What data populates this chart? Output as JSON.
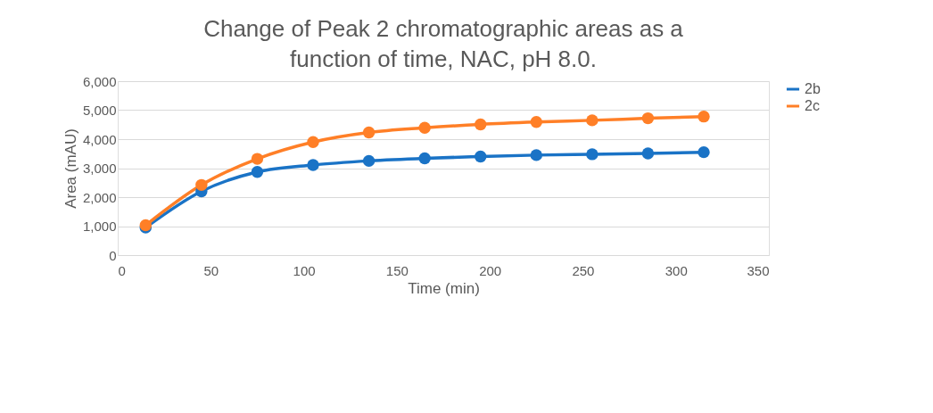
{
  "chart_data": {
    "type": "line",
    "title": "Change of Peak 2 chromatographic areas as a function of time, NAC, pH 8.0.",
    "xlabel": "Time (min)",
    "ylabel": "Area (mAU)",
    "x": [
      15,
      45,
      75,
      105,
      135,
      165,
      195,
      225,
      255,
      285,
      315
    ],
    "series": [
      {
        "name": "2b",
        "color": "#1a73c6",
        "values": [
          950,
          2200,
          2870,
          3110,
          3250,
          3340,
          3400,
          3450,
          3480,
          3510,
          3550
        ]
      },
      {
        "name": "2c",
        "color": "#ff7f27",
        "values": [
          1030,
          2420,
          3320,
          3900,
          4230,
          4390,
          4510,
          4590,
          4650,
          4720,
          4780
        ]
      }
    ],
    "xlim": [
      0,
      350
    ],
    "xticks": [
      0,
      50,
      100,
      150,
      200,
      250,
      300,
      350
    ],
    "ylim": [
      0,
      6000
    ],
    "yticks": [
      {
        "value": 0,
        "label": "0"
      },
      {
        "value": 1000,
        "label": "1,000"
      },
      {
        "value": 2000,
        "label": "2,000"
      },
      {
        "value": 3000,
        "label": "3,000"
      },
      {
        "value": 4000,
        "label": "4,000"
      },
      {
        "value": 5000,
        "label": "5,000"
      },
      {
        "value": 6000,
        "label": "6,000"
      }
    ],
    "grid": "y",
    "legend": "right",
    "marker": "circle",
    "line_style": "solid"
  }
}
